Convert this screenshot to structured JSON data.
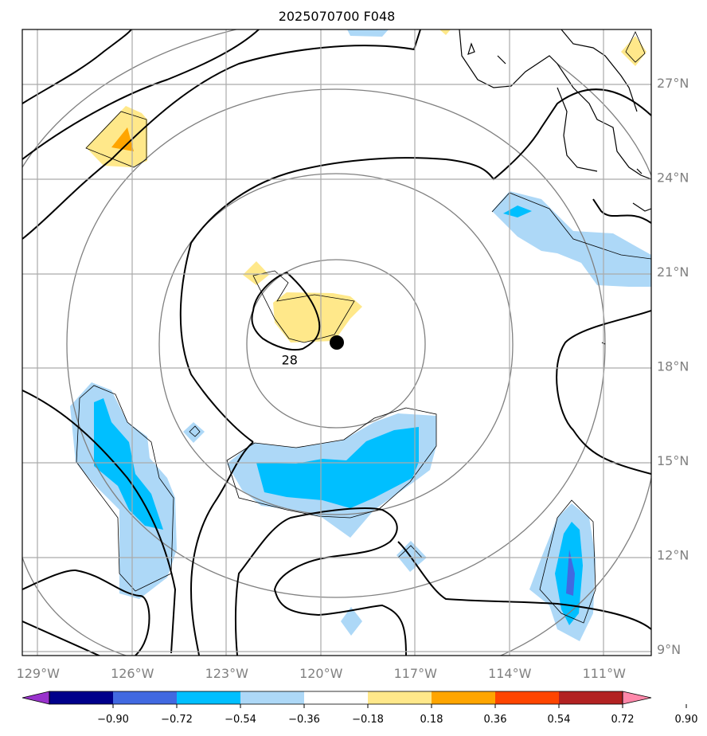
{
  "chart_data": {
    "type": "map-contour",
    "title": "2025070700 F048",
    "x_ticks": [
      "129°W",
      "126°W",
      "123°W",
      "120°W",
      "117°W",
      "114°W",
      "111°W"
    ],
    "x_values": [
      -129,
      -126,
      -123,
      -120,
      -117,
      -114,
      -111
    ],
    "y_ticks": [
      "27°N",
      "24°N",
      "21°N",
      "18°N",
      "15°N",
      "12°N",
      "9°N"
    ],
    "y_values": [
      27,
      24,
      21,
      18,
      15,
      12,
      9
    ],
    "xlim": [
      -129.5,
      -109.5
    ],
    "ylim": [
      8.8,
      28.7
    ],
    "grid": true,
    "center_marker": {
      "lon": -119.5,
      "lat": 18.75
    },
    "contour_label": {
      "text": "28",
      "lon": -121.0,
      "lat": 18.2
    },
    "colorbar": {
      "ticks": [
        "−0.90",
        "−0.72",
        "−0.54",
        "−0.36",
        "−0.18",
        "0.18",
        "0.36",
        "0.54",
        "0.72",
        "0.90"
      ],
      "colors": [
        "#9932cc",
        "#00008b",
        "#4169e1",
        "#00bfff",
        "#add8f7",
        "#ffffff",
        "#ffe88a",
        "#ffa500",
        "#ff4500",
        "#b22222",
        "#ff88aa"
      ],
      "extend": "both"
    }
  }
}
